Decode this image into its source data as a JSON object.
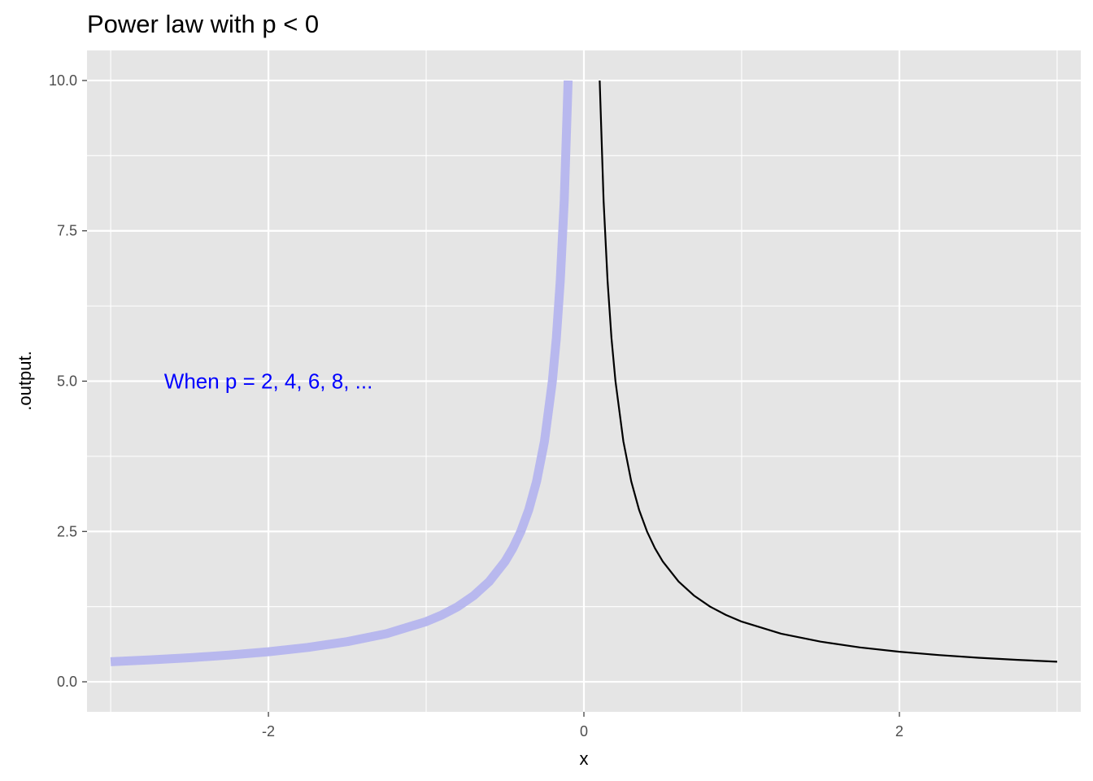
{
  "chart_data": {
    "type": "line",
    "title": "Power law with p < 0",
    "xlabel": "x",
    "ylabel": ".output.",
    "xlim": [
      -3.15,
      3.15
    ],
    "ylim": [
      -0.5,
      10.5
    ],
    "x_ticks": [
      {
        "value": -2,
        "label": "-2"
      },
      {
        "value": 0,
        "label": "0"
      },
      {
        "value": 2,
        "label": "2"
      }
    ],
    "x_minor_ticks": [
      -3,
      -1,
      1,
      3
    ],
    "y_ticks": [
      {
        "value": 0.0,
        "label": "0.0"
      },
      {
        "value": 2.5,
        "label": "2.5"
      },
      {
        "value": 5.0,
        "label": "5.0"
      },
      {
        "value": 7.5,
        "label": "7.5"
      },
      {
        "value": 10.0,
        "label": "10.0"
      }
    ],
    "y_minor_ticks": [
      1.25,
      3.75,
      6.25,
      8.75
    ],
    "grid": true,
    "series": [
      {
        "color": "#b8b8ee",
        "x": [
          -3.0,
          -2.75,
          -2.5,
          -2.25,
          -2.0,
          -1.75,
          -1.5,
          -1.25,
          -1.0,
          -0.9,
          -0.8,
          -0.7,
          -0.6,
          -0.5,
          -0.45,
          -0.4,
          -0.35,
          -0.3,
          -0.25,
          -0.2,
          -0.175,
          -0.15,
          -0.125,
          -0.1
        ],
        "y": [
          0.333,
          0.364,
          0.4,
          0.444,
          0.5,
          0.571,
          0.667,
          0.8,
          1.0,
          1.111,
          1.25,
          1.429,
          1.667,
          2.0,
          2.222,
          2.5,
          2.857,
          3.333,
          4.0,
          5.0,
          5.714,
          6.667,
          8.0,
          10.0
        ]
      },
      {
        "color": "#000000",
        "x": [
          0.1,
          0.125,
          0.15,
          0.175,
          0.2,
          0.25,
          0.3,
          0.35,
          0.4,
          0.45,
          0.5,
          0.6,
          0.7,
          0.8,
          0.9,
          1.0,
          1.25,
          1.5,
          1.75,
          2.0,
          2.25,
          2.5,
          2.75,
          3.0
        ],
        "y": [
          10.0,
          8.0,
          6.667,
          5.714,
          5.0,
          4.0,
          3.333,
          2.857,
          2.5,
          2.222,
          2.0,
          1.667,
          1.429,
          1.25,
          1.111,
          1.0,
          0.8,
          0.667,
          0.571,
          0.5,
          0.444,
          0.4,
          0.364,
          0.333
        ]
      }
    ],
    "annotations": [
      {
        "text": "When p = 2, 4, 6, 8, ...",
        "x": -2.0,
        "y": 5.0,
        "color": "#0000ff"
      }
    ]
  }
}
